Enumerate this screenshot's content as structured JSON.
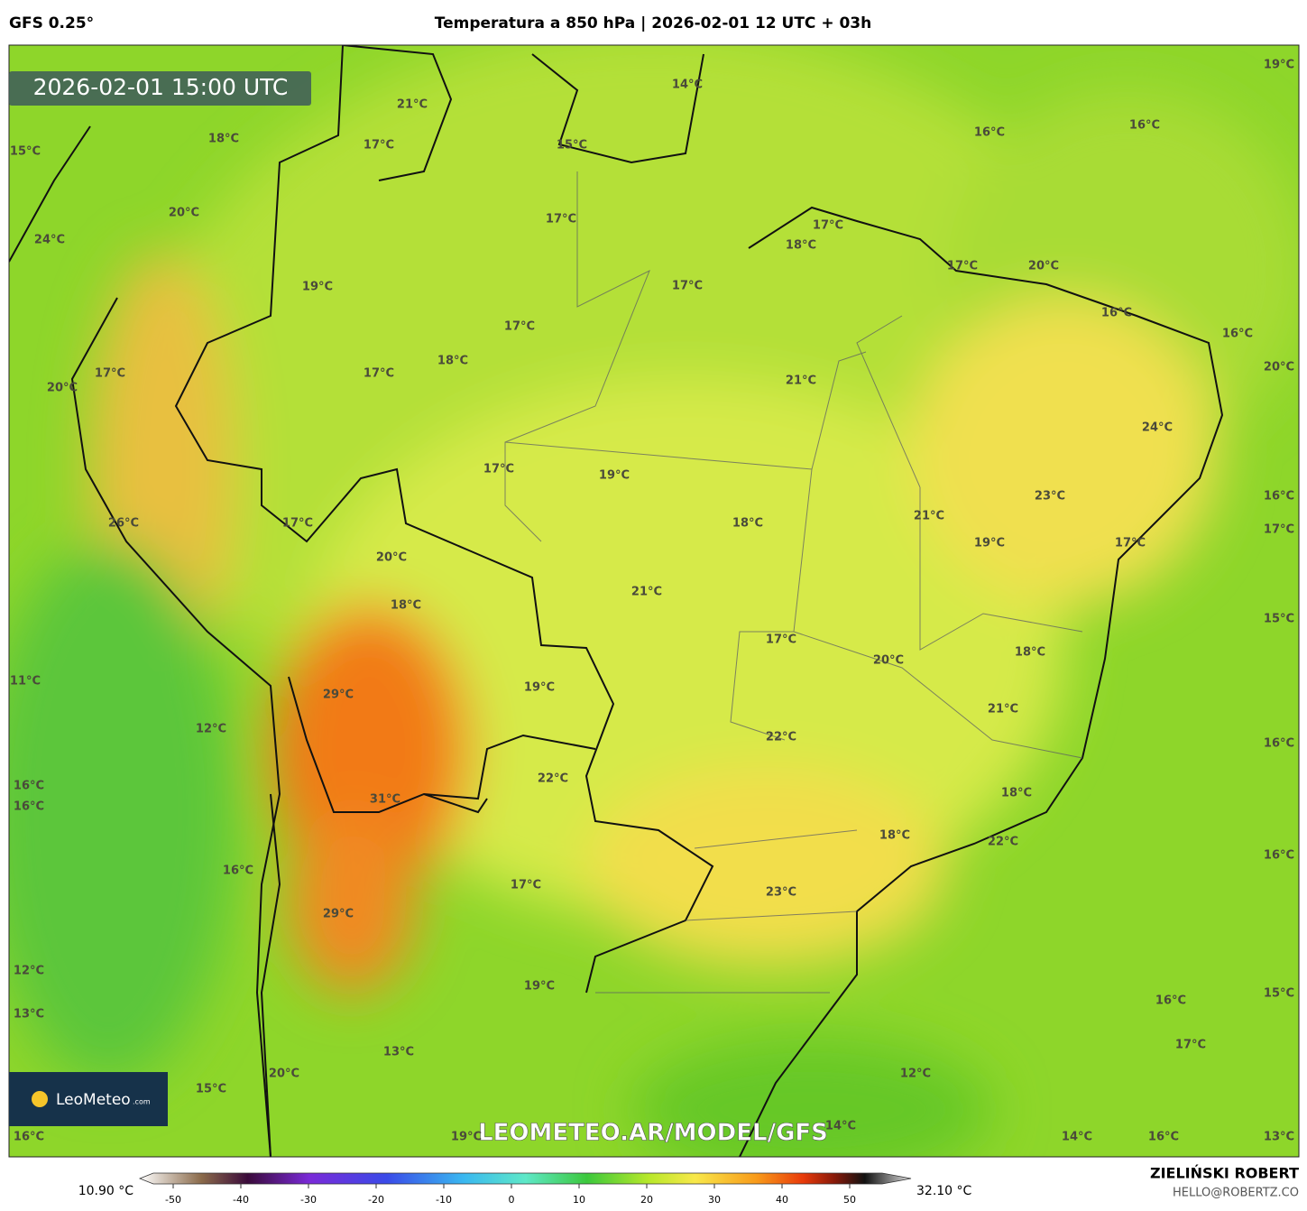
{
  "header": {
    "model": "GFS 0.25°",
    "title": "Temperatura a 850 hPa | 2026-02-01 12 UTC + 03h"
  },
  "map": {
    "valid_time": "2026-02-01 15:00 UTC",
    "watermark": "LEOMETEO.AR/MODEL/GFS",
    "logo": "LeoMeteo",
    "logo_suffix": ".com",
    "labels": [
      "21°C",
      "14°C",
      "19°C",
      "18°C",
      "17°C",
      "15°C",
      "16°C",
      "16°C",
      "15°C",
      "20°C",
      "17°C",
      "17°C",
      "18°C",
      "24°C",
      "17°C",
      "20°C",
      "19°C",
      "17°C",
      "17°C",
      "16°C",
      "16°C",
      "18°C",
      "17°C",
      "17°C",
      "21°C",
      "20°C",
      "20°C",
      "24°C",
      "17°C",
      "19°C",
      "23°C",
      "16°C",
      "21°C",
      "18°C",
      "26°C",
      "17°C",
      "17°C",
      "19°C",
      "17°C",
      "20°C",
      "21°C",
      "18°C",
      "15°C",
      "17°C",
      "18°C",
      "20°C",
      "11°C",
      "29°C",
      "19°C",
      "21°C",
      "12°C",
      "22°C",
      "16°C",
      "22°C",
      "16°C",
      "16°C",
      "31°C",
      "18°C",
      "18°C",
      "22°C",
      "16°C",
      "16°C",
      "17°C",
      "23°C",
      "29°C",
      "12°C",
      "19°C",
      "15°C",
      "16°C",
      "13°C",
      "17°C",
      "13°C",
      "20°C",
      "12°C",
      "15°C",
      "14°C",
      "16°C",
      "19°C",
      "14°C",
      "16°C",
      "13°C"
    ]
  },
  "colorbar": {
    "min_label": "10.90 °C",
    "max_label": "32.10 °C",
    "ticks": [
      -50,
      -40,
      -30,
      -20,
      -10,
      0,
      10,
      20,
      30,
      40,
      50
    ]
  },
  "credit": {
    "name": "ZIELIŃSKI ROBERT",
    "email": "HELLO@ROBERTZ.CO"
  }
}
